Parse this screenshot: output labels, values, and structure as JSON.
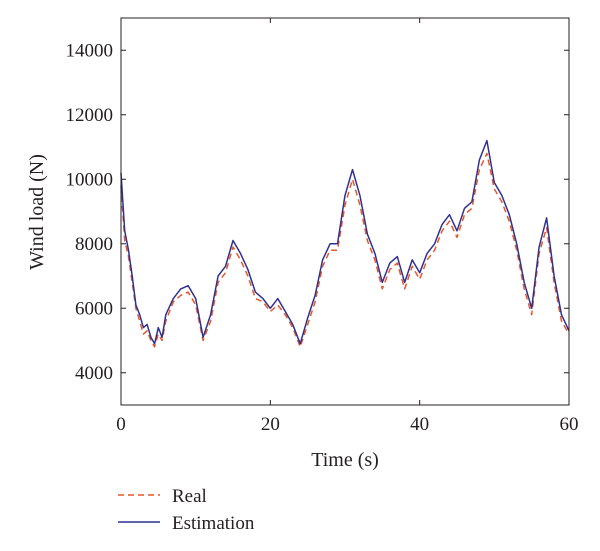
{
  "chart_data": {
    "type": "line",
    "title": "",
    "xlabel": "Time (s)",
    "ylabel": "Wind load (N)",
    "xlim": [
      0,
      60
    ],
    "ylim": [
      3000,
      15000
    ],
    "x_ticks": [
      0,
      20,
      40,
      60
    ],
    "y_ticks": [
      4000,
      6000,
      8000,
      10000,
      12000,
      14000
    ],
    "grid": false,
    "legend_position": "bottom-left",
    "series": [
      {
        "name": "Real",
        "color": "#e8572a",
        "style": "dashed",
        "x": [
          0,
          0.5,
          1,
          1.5,
          2,
          2.5,
          3,
          3.5,
          4,
          4.5,
          5,
          5.5,
          6,
          7,
          8,
          9,
          10,
          11,
          12,
          13,
          14,
          15,
          16,
          17,
          18,
          19,
          20,
          21,
          22,
          23,
          24,
          25,
          26,
          27,
          28,
          29,
          30,
          31,
          32,
          33,
          34,
          35,
          36,
          37,
          38,
          39,
          40,
          41,
          42,
          43,
          44,
          45,
          46,
          47,
          48,
          49,
          50,
          51,
          52,
          53,
          54,
          55,
          56,
          57,
          58,
          59,
          60
        ],
        "y": [
          9800,
          8100,
          7600,
          6800,
          6000,
          5600,
          5200,
          5300,
          5000,
          4800,
          5200,
          5000,
          5600,
          6200,
          6400,
          6500,
          6100,
          5000,
          5600,
          6800,
          7100,
          7900,
          7500,
          7000,
          6300,
          6200,
          5900,
          6100,
          5800,
          5400,
          4800,
          5500,
          6200,
          7300,
          7800,
          7800,
          9200,
          10000,
          9200,
          8100,
          7500,
          6600,
          7200,
          7400,
          6600,
          7300,
          6900,
          7500,
          7800,
          8400,
          8700,
          8200,
          8900,
          9100,
          10300,
          10800,
          9700,
          9300,
          8700,
          7800,
          6600,
          5800,
          7700,
          8500,
          6800,
          5600,
          5200
        ]
      },
      {
        "name": "Estimation",
        "color": "#2e3192",
        "style": "solid",
        "x": [
          0,
          0.5,
          1,
          1.5,
          2,
          2.5,
          3,
          3.5,
          4,
          4.5,
          5,
          5.5,
          6,
          7,
          8,
          9,
          10,
          11,
          12,
          13,
          14,
          15,
          16,
          17,
          18,
          19,
          20,
          21,
          22,
          23,
          24,
          25,
          26,
          27,
          28,
          29,
          30,
          31,
          32,
          33,
          34,
          35,
          36,
          37,
          38,
          39,
          40,
          41,
          42,
          43,
          44,
          45,
          46,
          47,
          48,
          49,
          50,
          51,
          52,
          53,
          54,
          55,
          56,
          57,
          58,
          59,
          60
        ],
        "y": [
          10200,
          8400,
          7800,
          7000,
          6100,
          5800,
          5400,
          5500,
          5100,
          4900,
          5400,
          5100,
          5800,
          6300,
          6600,
          6700,
          6300,
          5100,
          5800,
          7000,
          7300,
          8100,
          7700,
          7200,
          6500,
          6300,
          6000,
          6300,
          5900,
          5500,
          4900,
          5700,
          6400,
          7500,
          8000,
          8000,
          9500,
          10300,
          9500,
          8300,
          7700,
          6800,
          7400,
          7600,
          6800,
          7500,
          7100,
          7700,
          8000,
          8600,
          8900,
          8400,
          9100,
          9300,
          10600,
          11200,
          9900,
          9500,
          8900,
          8000,
          6800,
          6000,
          7900,
          8800,
          7000,
          5800,
          5300
        ]
      }
    ]
  }
}
